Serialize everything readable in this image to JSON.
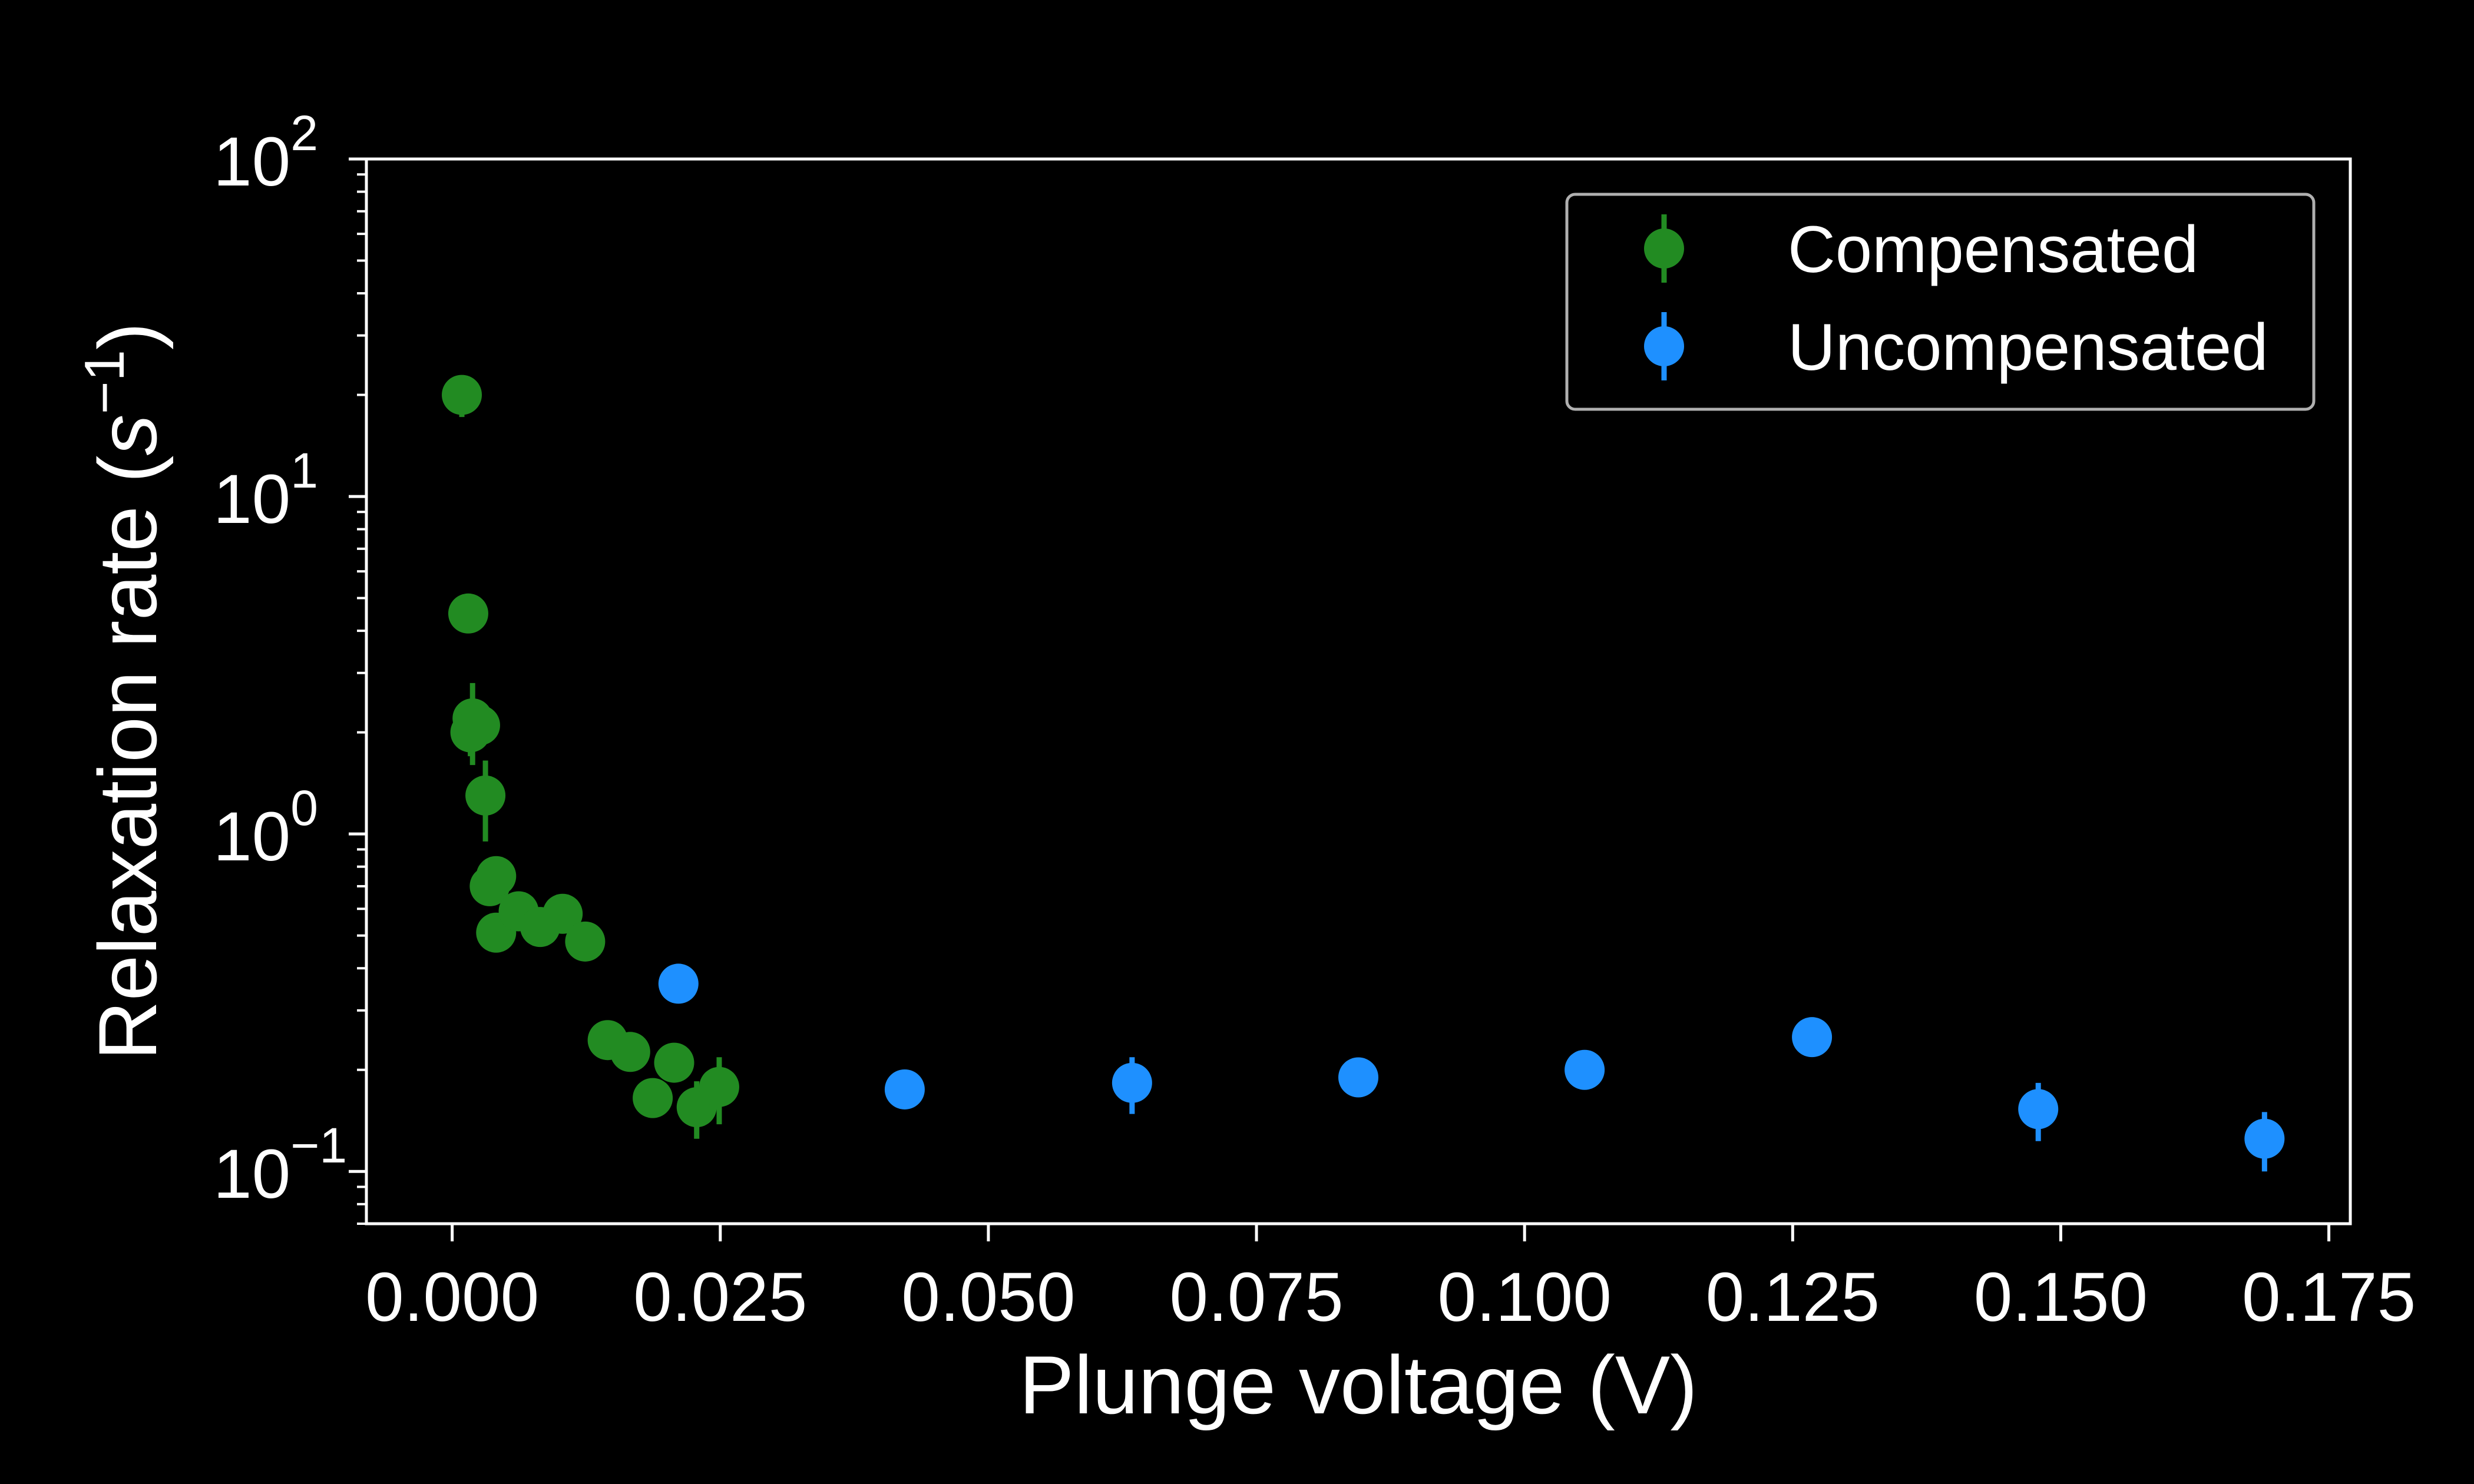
{
  "chart_data": {
    "type": "scatter",
    "title": "",
    "xlabel": "Plunge voltage (V)",
    "ylabel": {
      "prefix": "Relaxation rate (",
      "var": "s",
      "sup": "−1",
      "suffix": ")"
    },
    "xscale": "linear",
    "yscale": "log",
    "xlim": [
      -0.008,
      0.177
    ],
    "ylim": [
      0.07,
      100
    ],
    "x_ticks": [
      {
        "value": 0.0,
        "label": "0.000"
      },
      {
        "value": 0.025,
        "label": "0.025"
      },
      {
        "value": 0.05,
        "label": "0.050"
      },
      {
        "value": 0.075,
        "label": "0.075"
      },
      {
        "value": 0.1,
        "label": "0.100"
      },
      {
        "value": 0.125,
        "label": "0.125"
      },
      {
        "value": 0.15,
        "label": "0.150"
      },
      {
        "value": 0.175,
        "label": "0.175"
      }
    ],
    "y_ticks": [
      {
        "value": 0.1,
        "base": "10",
        "exp": "−1"
      },
      {
        "value": 1,
        "base": "10",
        "exp": "0"
      },
      {
        "value": 10,
        "base": "10",
        "exp": "1"
      },
      {
        "value": 100,
        "base": "10",
        "exp": "2"
      }
    ],
    "grid": false,
    "legend_position": "top-right",
    "series": [
      {
        "name": "Compensated",
        "color": "#228b22",
        "points": [
          {
            "x": 0.0009,
            "y": 20.0,
            "err": 2.8
          },
          {
            "x": 0.0015,
            "y": 4.5,
            "err": 0.4
          },
          {
            "x": 0.0019,
            "y": 2.2,
            "err": 0.6
          },
          {
            "x": 0.0017,
            "y": 2.0,
            "err": 0.3
          },
          {
            "x": 0.0026,
            "y": 2.1,
            "err": 0.2
          },
          {
            "x": 0.0031,
            "y": 1.3,
            "err": 0.35
          },
          {
            "x": 0.0035,
            "y": 0.7,
            "err": 0.05
          },
          {
            "x": 0.0041,
            "y": 0.75,
            "err": 0.05
          },
          {
            "x": 0.0041,
            "y": 0.51,
            "err": 0.04
          },
          {
            "x": 0.0062,
            "y": 0.59,
            "err": 0.04
          },
          {
            "x": 0.0082,
            "y": 0.53,
            "err": 0.04
          },
          {
            "x": 0.0103,
            "y": 0.58,
            "err": 0.04
          },
          {
            "x": 0.0124,
            "y": 0.48,
            "err": 0.04
          },
          {
            "x": 0.0145,
            "y": 0.245,
            "err": 0.02
          },
          {
            "x": 0.0166,
            "y": 0.226,
            "err": 0.02
          },
          {
            "x": 0.0187,
            "y": 0.165,
            "err": 0.015
          },
          {
            "x": 0.0207,
            "y": 0.21,
            "err": 0.02
          },
          {
            "x": 0.0228,
            "y": 0.155,
            "err": 0.03
          },
          {
            "x": 0.0249,
            "y": 0.178,
            "err": 0.04
          }
        ]
      },
      {
        "name": "Uncompensated",
        "color": "#1e90ff",
        "points": [
          {
            "x": 0.0211,
            "y": 0.36,
            "err": 0.02
          },
          {
            "x": 0.0422,
            "y": 0.175,
            "err": 0.01
          },
          {
            "x": 0.0634,
            "y": 0.183,
            "err": 0.035
          },
          {
            "x": 0.0845,
            "y": 0.19,
            "err": 0.01
          },
          {
            "x": 0.1056,
            "y": 0.2,
            "err": 0.025
          },
          {
            "x": 0.1268,
            "y": 0.25,
            "err": 0.03
          },
          {
            "x": 0.1479,
            "y": 0.153,
            "err": 0.03
          },
          {
            "x": 0.169,
            "y": 0.125,
            "err": 0.025
          }
        ]
      }
    ]
  }
}
